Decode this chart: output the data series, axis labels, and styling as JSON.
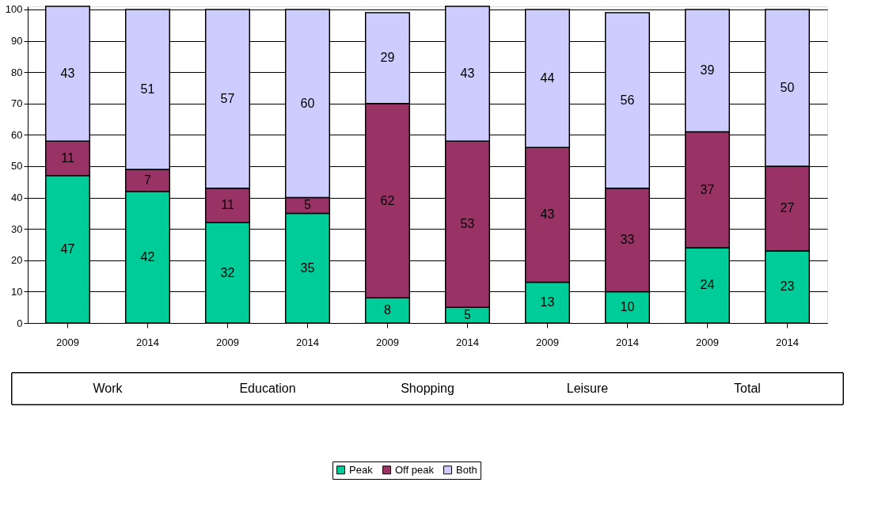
{
  "chart_data": {
    "type": "bar",
    "stacked": true,
    "categories": [
      "2009",
      "2014",
      "2009",
      "2014",
      "2009",
      "2014",
      "2009",
      "2014",
      "2009",
      "2014"
    ],
    "series": [
      {
        "name": "Peak",
        "color": "#00cc99",
        "values": [
          47,
          42,
          32,
          35,
          8,
          5,
          13,
          10,
          24,
          23
        ]
      },
      {
        "name": "Off peak",
        "color": "#993366",
        "values": [
          11,
          7,
          11,
          5,
          62,
          53,
          43,
          33,
          37,
          27
        ]
      },
      {
        "name": "Both",
        "color": "#ccccff",
        "values": [
          43,
          51,
          57,
          60,
          29,
          43,
          44,
          56,
          39,
          50
        ]
      }
    ],
    "ylim": [
      0,
      101
    ],
    "yticks": [
      0,
      10,
      20,
      30,
      40,
      50,
      60,
      70,
      80,
      90,
      100
    ],
    "grid": "y",
    "data_labels": true,
    "legend": "bottom",
    "annotations": [
      "Work",
      "Education",
      "Shopping",
      "Leisure",
      "Total"
    ]
  }
}
